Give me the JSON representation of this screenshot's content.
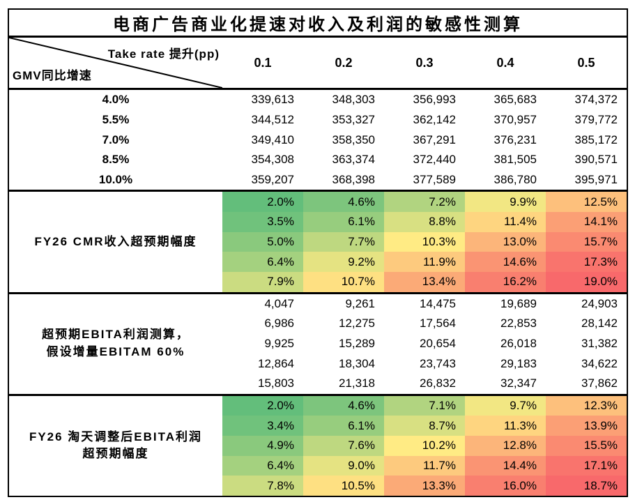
{
  "title": "电商广告商业化提速对收入及利润的敏感性测算",
  "header": {
    "top_label": "Take rate 提升(pp)",
    "left_label": "GMV同比增速",
    "columns": [
      "0.1",
      "0.2",
      "0.3",
      "0.4",
      "0.5"
    ]
  },
  "colors": {
    "border": "#000000",
    "text": "#000000",
    "heat_scale_min": "#63BE7B",
    "heat_scale_mid": "#FFEB84",
    "heat_scale_max": "#F8696B"
  },
  "blocks": [
    {
      "row_labels": [
        "4.0%",
        "5.5%",
        "7.0%",
        "8.5%",
        "10.0%"
      ],
      "rows": [
        [
          "339,613",
          "348,303",
          "356,993",
          "365,683",
          "374,372"
        ],
        [
          "344,512",
          "353,327",
          "362,142",
          "370,957",
          "379,772"
        ],
        [
          "349,410",
          "358,350",
          "367,291",
          "376,231",
          "385,172"
        ],
        [
          "354,308",
          "363,374",
          "372,440",
          "381,505",
          "390,571"
        ],
        [
          "359,207",
          "368,398",
          "377,589",
          "386,780",
          "395,971"
        ]
      ]
    },
    {
      "label": "FY26 CMR收入超预期幅度",
      "rows": [
        [
          "2.0%",
          "4.6%",
          "7.2%",
          "9.9%",
          "12.5%"
        ],
        [
          "3.5%",
          "6.1%",
          "8.8%",
          "11.4%",
          "14.1%"
        ],
        [
          "5.0%",
          "7.7%",
          "10.3%",
          "13.0%",
          "15.7%"
        ],
        [
          "6.4%",
          "9.2%",
          "11.9%",
          "14.6%",
          "17.3%"
        ],
        [
          "7.9%",
          "10.7%",
          "13.4%",
          "16.2%",
          "19.0%"
        ]
      ],
      "cell_colors": [
        [
          "#63BE7B",
          "#7DC57D",
          "#B1D480",
          "#F2E783",
          "#FDC07C"
        ],
        [
          "#70C27C",
          "#97CD7E",
          "#D8E082",
          "#FED580",
          "#FB9F75"
        ],
        [
          "#8AC97D",
          "#BED880",
          "#FFEB84",
          "#FCB57A",
          "#FA8A71"
        ],
        [
          "#A4D17F",
          "#E5E382",
          "#FDCA7E",
          "#FA9473",
          "#F9746D"
        ],
        [
          "#CBDC81",
          "#FEE082",
          "#FBAA77",
          "#F97F6F",
          "#F8696B"
        ]
      ]
    },
    {
      "label_lines": [
        "超预期EBITA利润测算，",
        "假设增量EBITAM 60%"
      ],
      "rows": [
        [
          "4,047",
          "9,261",
          "14,475",
          "19,689",
          "24,903"
        ],
        [
          "6,986",
          "12,275",
          "17,564",
          "22,853",
          "28,142"
        ],
        [
          "9,925",
          "15,289",
          "20,654",
          "26,018",
          "31,382"
        ],
        [
          "12,864",
          "18,304",
          "23,743",
          "29,183",
          "34,622"
        ],
        [
          "15,803",
          "21,318",
          "26,832",
          "32,347",
          "37,862"
        ]
      ]
    },
    {
      "label_lines": [
        "FY26 淘天调整后EBITA利润",
        "超预期幅度"
      ],
      "rows": [
        [
          "2.0%",
          "4.6%",
          "7.1%",
          "9.7%",
          "12.3%"
        ],
        [
          "3.4%",
          "6.1%",
          "8.7%",
          "11.3%",
          "13.9%"
        ],
        [
          "4.9%",
          "7.6%",
          "10.2%",
          "12.8%",
          "15.5%"
        ],
        [
          "6.4%",
          "9.0%",
          "11.7%",
          "14.4%",
          "17.1%"
        ],
        [
          "7.8%",
          "10.5%",
          "13.3%",
          "16.0%",
          "18.7%"
        ]
      ],
      "cell_colors": [
        [
          "#63BE7B",
          "#7DC57D",
          "#B1D480",
          "#F2E783",
          "#FDC07C"
        ],
        [
          "#70C27C",
          "#97CD7E",
          "#D8E082",
          "#FED580",
          "#FB9F75"
        ],
        [
          "#8AC97D",
          "#BED880",
          "#FFEB84",
          "#FCB57A",
          "#FA8A71"
        ],
        [
          "#A4D17F",
          "#E5E382",
          "#FDCA7E",
          "#FA9473",
          "#F9746D"
        ],
        [
          "#CBDC81",
          "#FEE082",
          "#FBAA77",
          "#F97F6F",
          "#F8696B"
        ]
      ]
    }
  ],
  "chart_data": {
    "type": "table",
    "title": "电商广告商业化提速对收入及利润的敏感性测算",
    "col_axis_label": "Take rate 提升(pp)",
    "row_axis_label": "GMV同比增速",
    "take_rate_columns": [
      0.1,
      0.2,
      0.3,
      0.4,
      0.5
    ],
    "gmv_growth_rows": [
      "4.0%",
      "5.5%",
      "7.0%",
      "8.5%",
      "10.0%"
    ],
    "sections": [
      {
        "label": "",
        "description_visible": false,
        "values": [
          [
            339613,
            348303,
            356993,
            365683,
            374372
          ],
          [
            344512,
            353327,
            362142,
            370957,
            379772
          ],
          [
            349410,
            358350,
            367291,
            376231,
            385172
          ],
          [
            354308,
            363374,
            372440,
            381505,
            390571
          ],
          [
            359207,
            368398,
            377589,
            386780,
            395971
          ]
        ]
      },
      {
        "label": "FY26 CMR收入超预期幅度",
        "heatmap": true,
        "unit": "%",
        "values": [
          [
            2.0,
            4.6,
            7.2,
            9.9,
            12.5
          ],
          [
            3.5,
            6.1,
            8.8,
            11.4,
            14.1
          ],
          [
            5.0,
            7.7,
            10.3,
            13.0,
            15.7
          ],
          [
            6.4,
            9.2,
            11.9,
            14.6,
            17.3
          ],
          [
            7.9,
            10.7,
            13.4,
            16.2,
            19.0
          ]
        ]
      },
      {
        "label": "超预期EBITA利润测算，假设增量EBITAM 60%",
        "values": [
          [
            4047,
            9261,
            14475,
            19689,
            24903
          ],
          [
            6986,
            12275,
            17564,
            22853,
            28142
          ],
          [
            9925,
            15289,
            20654,
            26018,
            31382
          ],
          [
            12864,
            18304,
            23743,
            29183,
            34622
          ],
          [
            15803,
            21318,
            26832,
            32347,
            37862
          ]
        ]
      },
      {
        "label": "FY26 淘天调整后EBITA利润超预期幅度",
        "heatmap": true,
        "unit": "%",
        "values": [
          [
            2.0,
            4.6,
            7.1,
            9.7,
            12.3
          ],
          [
            3.4,
            6.1,
            8.7,
            11.3,
            13.9
          ],
          [
            4.9,
            7.6,
            10.2,
            12.8,
            15.5
          ],
          [
            6.4,
            9.0,
            11.7,
            14.4,
            17.1
          ],
          [
            7.8,
            10.5,
            13.3,
            16.0,
            18.7
          ]
        ]
      }
    ],
    "heat_colormap": {
      "low": "#63BE7B",
      "mid": "#FFEB84",
      "high": "#F8696B"
    }
  }
}
